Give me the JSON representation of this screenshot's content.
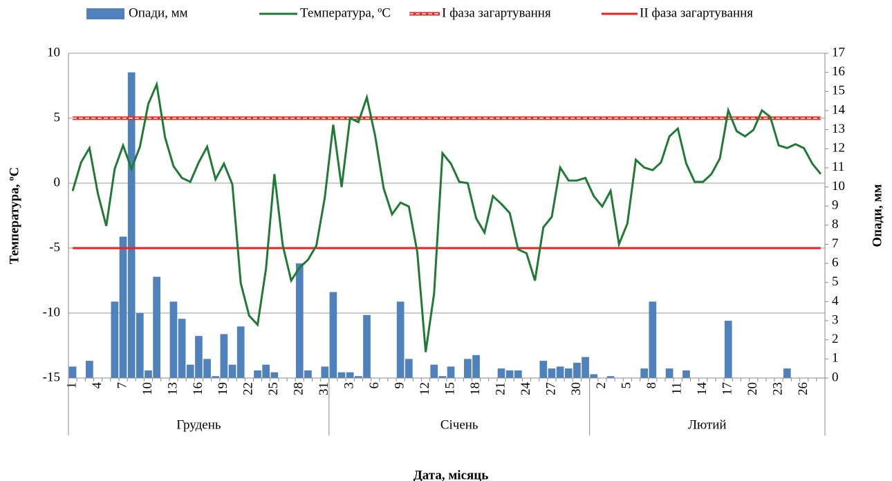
{
  "chart_data": {
    "type": "combo",
    "x_label": "Дата, місяць",
    "y_label": "Температура, ºС",
    "y2_label": "Опади, мм",
    "categories": [
      "1",
      null,
      null,
      "4",
      null,
      null,
      "7",
      null,
      null,
      "10",
      null,
      null,
      "13",
      null,
      null,
      "16",
      null,
      null,
      "19",
      null,
      null,
      "22",
      null,
      null,
      "25",
      null,
      null,
      "28",
      null,
      null,
      "31",
      null,
      null,
      "3",
      null,
      null,
      "6",
      null,
      null,
      "9",
      null,
      null,
      "12",
      null,
      null,
      "15",
      null,
      null,
      "18",
      null,
      null,
      "21",
      null,
      null,
      "24",
      null,
      null,
      "27",
      null,
      null,
      "30",
      null,
      null,
      "2",
      null,
      null,
      "5",
      null,
      null,
      "8",
      null,
      null,
      "11",
      null,
      null,
      "14",
      null,
      null,
      "17",
      null,
      null,
      "20",
      null,
      null,
      "23",
      null,
      null,
      "26",
      null,
      null
    ],
    "groups": [
      {
        "label": "Грудень",
        "size": 31
      },
      {
        "label": "Січень",
        "size": 31
      },
      {
        "label": "Лютий",
        "size": 28
      }
    ],
    "series": [
      {
        "name": "Опади, мм",
        "kind": "bar",
        "axis": "y2",
        "color": "#4f81bd",
        "values": [
          0.6,
          0,
          0.9,
          0,
          0,
          4.0,
          7.4,
          16.0,
          3.4,
          0.4,
          5.3,
          0,
          4.0,
          3.1,
          0.7,
          2.2,
          1.0,
          0.1,
          2.3,
          0.7,
          2.7,
          0,
          0.4,
          0.7,
          0.3,
          0,
          0,
          6.0,
          0.4,
          0,
          0.6,
          4.5,
          0.3,
          0.3,
          0.1,
          3.3,
          0,
          0,
          0,
          4.0,
          1.0,
          0,
          0,
          0.7,
          0.1,
          0.6,
          0,
          1.0,
          1.2,
          0,
          0,
          0.5,
          0.4,
          0.4,
          0,
          0,
          0.9,
          0.5,
          0.6,
          0.5,
          0.8,
          1.1,
          0.2,
          0,
          0.1,
          0,
          0,
          0,
          0.5,
          4.0,
          0,
          0.5,
          0,
          0.4,
          0,
          0,
          0,
          0,
          3.0,
          0,
          0,
          0,
          0,
          0,
          0,
          0.5,
          0,
          0,
          0,
          0
        ]
      },
      {
        "name": "Температура, ºС",
        "kind": "line",
        "axis": "y",
        "color": "#1e7a34",
        "values": [
          -0.6,
          1.6,
          2.7,
          -0.8,
          -3.3,
          1.1,
          2.9,
          1.1,
          2.8,
          6.1,
          7.6,
          3.5,
          1.3,
          0.4,
          0.1,
          1.6,
          2.8,
          0.3,
          1.5,
          -0.1,
          -7.7,
          -10.2,
          -10.9,
          -6.6,
          0.7,
          -4.8,
          -7.5,
          -6.5,
          -5.9,
          -4.8,
          -1.1,
          4.5,
          -0.3,
          5.0,
          4.7,
          6.6,
          3.6,
          -0.4,
          -2.4,
          -1.5,
          -1.8,
          -5.3,
          -13.0,
          -8.5,
          2.3,
          1.5,
          0.1,
          0.0,
          -2.7,
          -3.8,
          -1.0,
          -1.6,
          -2.3,
          -5.1,
          -5.4,
          -7.5,
          -3.4,
          -2.6,
          1.2,
          0.2,
          0.2,
          0.4,
          -1.0,
          -1.8,
          -0.6,
          -4.7,
          -3.1,
          1.8,
          1.2,
          1.0,
          1.6,
          3.6,
          4.2,
          1.5,
          0.1,
          0.1,
          0.7,
          1.9,
          5.6,
          4.0,
          3.6,
          4.1,
          5.6,
          5.1,
          2.9,
          2.7,
          3.0,
          2.7,
          1.5,
          0.7
        ]
      }
    ],
    "reference_lines": [
      {
        "name": "I фаза загартування",
        "value": 5,
        "color": "#e8231f",
        "dashed": true
      },
      {
        "name": "II фаза загартування",
        "value": -5,
        "color": "#e8231f",
        "dashed": false
      }
    ],
    "ylim": [
      -15,
      10
    ],
    "yticks": [
      -15,
      -10,
      -5,
      0,
      5,
      10
    ],
    "y2lim": [
      0,
      17
    ],
    "y2ticks": [
      0,
      1,
      2,
      3,
      4,
      5,
      6,
      7,
      8,
      9,
      10,
      11,
      12,
      13,
      14,
      15,
      16,
      17
    ],
    "grid": true
  }
}
